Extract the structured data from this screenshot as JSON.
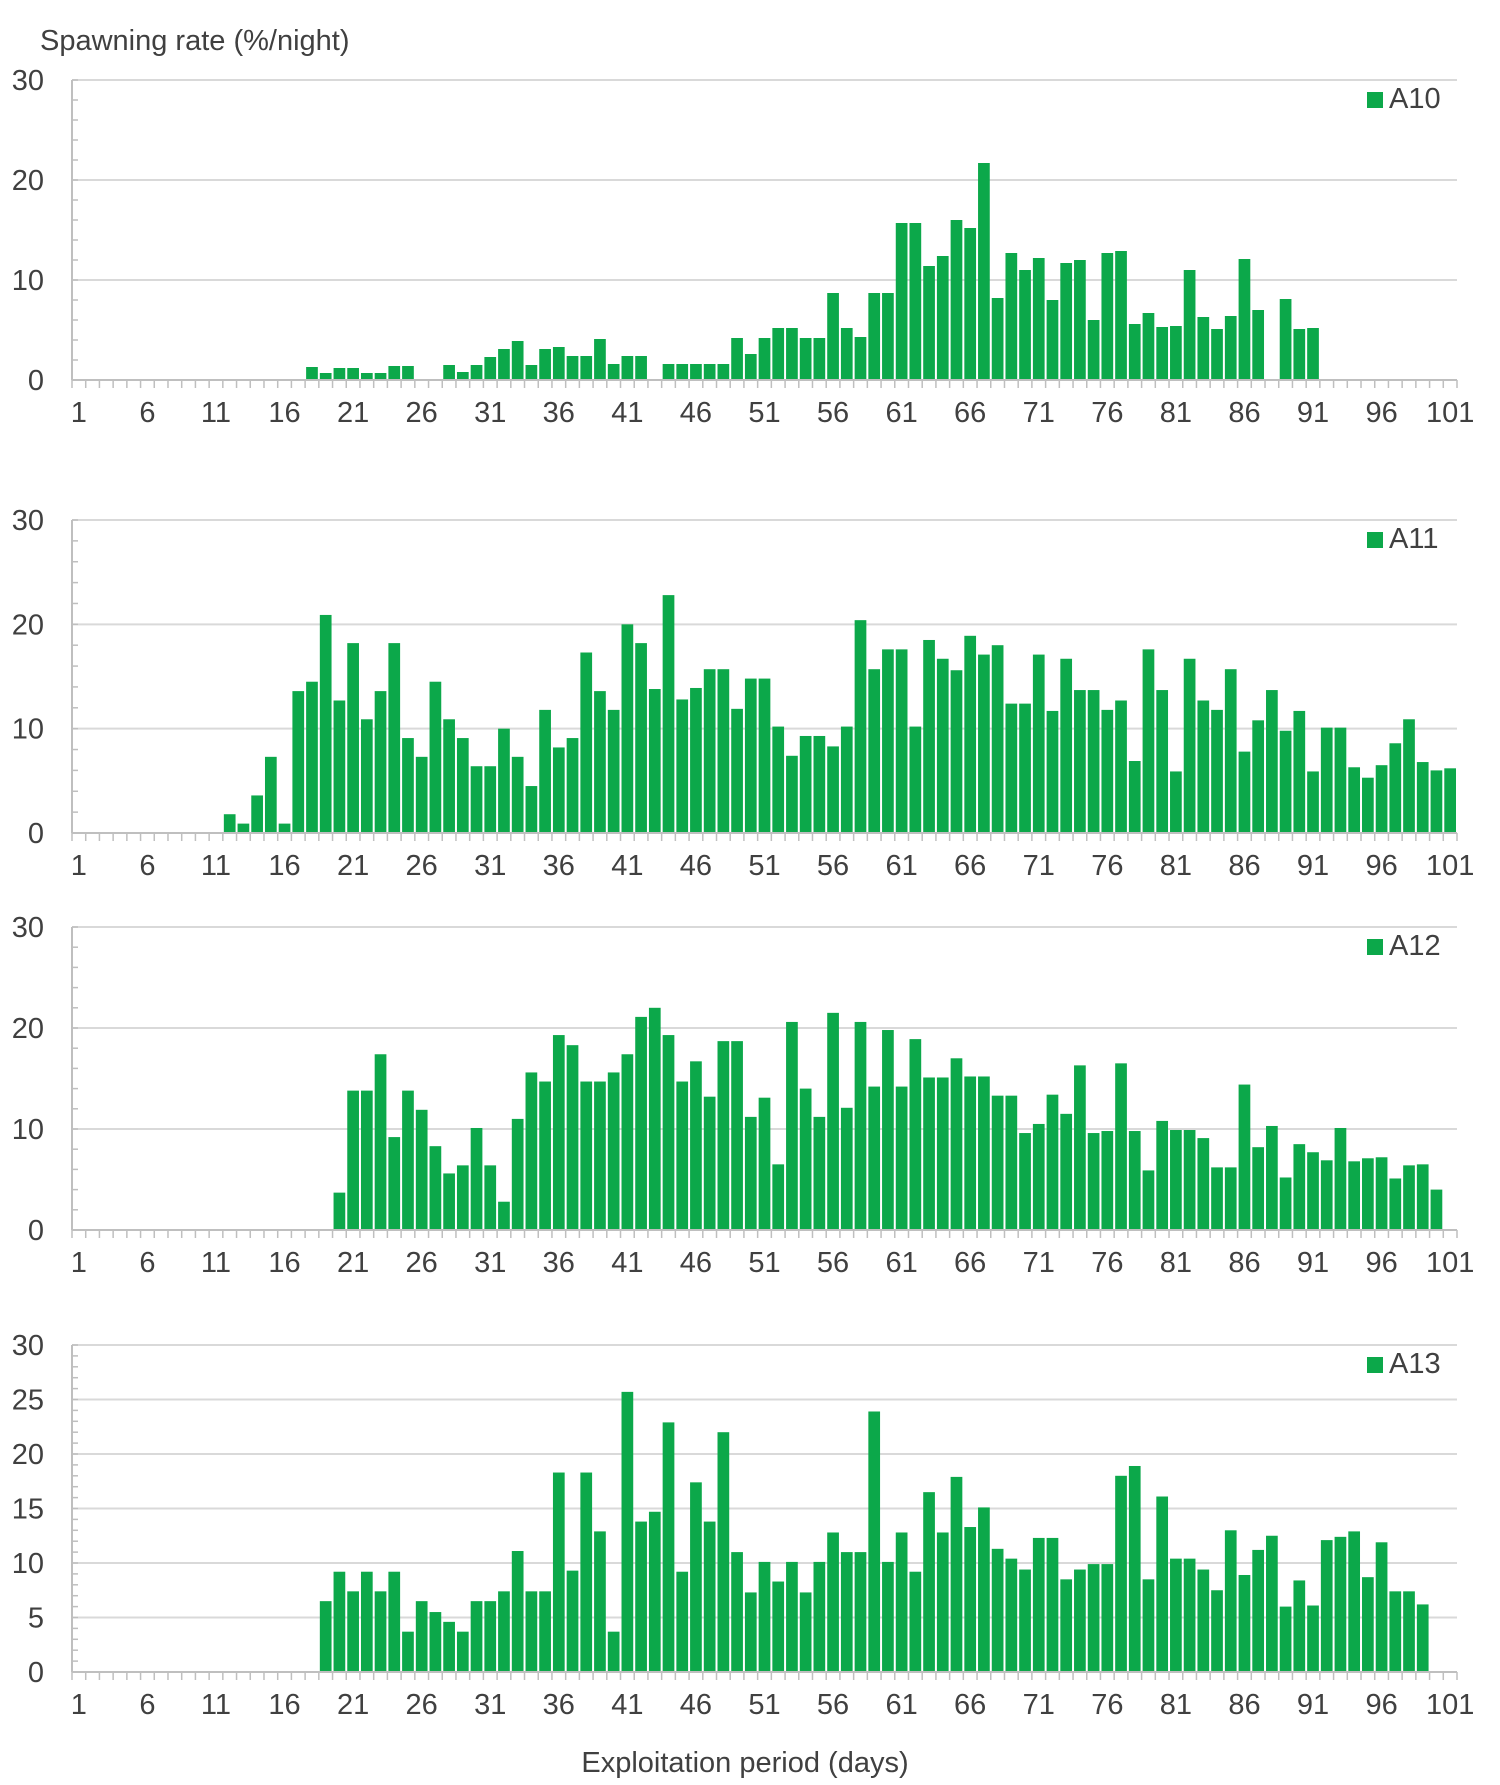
{
  "figure": {
    "ylabel": "Spawning rate (%/night)",
    "xlabel": "Exploitation period (days)",
    "bar_color": "#0ca84a",
    "grid_color": "#d9d9d9",
    "axis_color": "#bfbfbf"
  },
  "chart_data": [
    {
      "type": "bar",
      "title": "A10",
      "legend": "A10",
      "ylim": [
        0,
        30
      ],
      "yticks": [
        0,
        10,
        20,
        30
      ],
      "xtick_labels": [
        "1",
        "6",
        "11",
        "16",
        "21",
        "26",
        "31",
        "36",
        "41",
        "46",
        "51",
        "56",
        "61",
        "66",
        "71",
        "76",
        "81",
        "86",
        "91",
        "96",
        "101"
      ],
      "days": [
        1,
        2,
        3,
        4,
        5,
        6,
        7,
        8,
        9,
        10,
        11,
        12,
        13,
        14,
        15,
        16,
        17,
        18,
        19,
        20,
        21,
        22,
        23,
        24,
        25,
        26,
        27,
        28,
        29,
        30,
        31,
        32,
        33,
        34,
        35,
        36,
        37,
        38,
        39,
        40,
        41,
        42,
        43,
        44,
        45,
        46,
        47,
        48,
        49,
        50,
        51,
        52,
        53,
        54,
        55,
        56,
        57,
        58,
        59,
        60,
        61,
        62,
        63,
        64,
        65,
        66,
        67,
        68,
        69,
        70,
        71,
        72,
        73,
        74,
        75,
        76,
        77,
        78,
        79,
        80,
        81,
        82,
        83,
        84,
        85,
        86,
        87,
        88,
        89,
        90,
        91,
        92,
        93,
        94,
        95,
        96,
        97,
        98,
        99,
        100,
        101
      ],
      "values": [
        0,
        0,
        0,
        0,
        0,
        0,
        0,
        0,
        0,
        0,
        0,
        0,
        0,
        0,
        0,
        0,
        0,
        1.3,
        0.7,
        1.2,
        1.2,
        0.7,
        0.7,
        1.4,
        1.4,
        0,
        0,
        1.5,
        0.8,
        1.5,
        2.3,
        3.1,
        3.9,
        1.5,
        3.1,
        3.3,
        2.4,
        2.4,
        4.1,
        1.6,
        2.4,
        2.4,
        0,
        1.6,
        1.6,
        1.6,
        1.6,
        1.6,
        4.2,
        2.6,
        4.2,
        5.2,
        5.2,
        4.2,
        4.2,
        8.7,
        5.2,
        4.3,
        8.7,
        8.7,
        15.7,
        15.7,
        11.4,
        12.4,
        16,
        15.2,
        21.7,
        8.2,
        12.7,
        11,
        12.2,
        8,
        11.7,
        12,
        6,
        12.7,
        12.9,
        5.6,
        6.7,
        5.3,
        5.4,
        11,
        6.3,
        5.1,
        6.4,
        12.1,
        7,
        0,
        8.1,
        5.1,
        5.2,
        0,
        0,
        0,
        0,
        0,
        0,
        0,
        0,
        0,
        0
      ]
    },
    {
      "type": "bar",
      "title": "A11",
      "legend": "A11",
      "ylim": [
        0,
        30
      ],
      "yticks": [
        0,
        10,
        20,
        30
      ],
      "xtick_labels": [
        "1",
        "6",
        "11",
        "16",
        "21",
        "26",
        "31",
        "36",
        "41",
        "46",
        "51",
        "56",
        "61",
        "66",
        "71",
        "76",
        "81",
        "86",
        "91",
        "96",
        "101"
      ],
      "days": [
        1,
        2,
        3,
        4,
        5,
        6,
        7,
        8,
        9,
        10,
        11,
        12,
        13,
        14,
        15,
        16,
        17,
        18,
        19,
        20,
        21,
        22,
        23,
        24,
        25,
        26,
        27,
        28,
        29,
        30,
        31,
        32,
        33,
        34,
        35,
        36,
        37,
        38,
        39,
        40,
        41,
        42,
        43,
        44,
        45,
        46,
        47,
        48,
        49,
        50,
        51,
        52,
        53,
        54,
        55,
        56,
        57,
        58,
        59,
        60,
        61,
        62,
        63,
        64,
        65,
        66,
        67,
        68,
        69,
        70,
        71,
        72,
        73,
        74,
        75,
        76,
        77,
        78,
        79,
        80,
        81,
        82,
        83,
        84,
        85,
        86,
        87,
        88,
        89,
        90,
        91,
        92,
        93,
        94,
        95,
        96,
        97,
        98,
        99,
        100,
        101
      ],
      "values": [
        0,
        0,
        0,
        0,
        0,
        0,
        0,
        0,
        0,
        0,
        0,
        1.8,
        0.9,
        3.6,
        7.3,
        0.9,
        13.6,
        14.5,
        20.9,
        12.7,
        18.2,
        10.9,
        13.6,
        18.2,
        9.1,
        7.3,
        14.5,
        10.9,
        9.1,
        6.4,
        6.4,
        10,
        7.3,
        4.5,
        11.8,
        8.2,
        9.1,
        17.3,
        13.6,
        11.8,
        20,
        18.2,
        13.8,
        22.8,
        12.8,
        13.9,
        15.7,
        15.7,
        11.9,
        14.8,
        14.8,
        10.2,
        7.4,
        9.3,
        9.3,
        8.3,
        10.2,
        20.4,
        15.7,
        17.6,
        17.6,
        10.2,
        18.5,
        16.7,
        15.6,
        18.9,
        17.1,
        18,
        12.4,
        12.4,
        17.1,
        11.7,
        16.7,
        13.7,
        13.7,
        11.8,
        12.7,
        6.9,
        17.6,
        13.7,
        5.9,
        16.7,
        12.7,
        11.8,
        15.7,
        7.8,
        10.8,
        13.7,
        9.8,
        11.7,
        5.9,
        10.1,
        10.1,
        6.3,
        5.3,
        6.5,
        8.6,
        10.9,
        6.8,
        6,
        6.2
      ]
    },
    {
      "type": "bar",
      "title": "A12",
      "legend": "A12",
      "ylim": [
        0,
        30
      ],
      "yticks": [
        0,
        10,
        20,
        30
      ],
      "xtick_labels": [
        "1",
        "6",
        "11",
        "16",
        "21",
        "26",
        "31",
        "36",
        "41",
        "46",
        "51",
        "56",
        "61",
        "66",
        "71",
        "76",
        "81",
        "86",
        "91",
        "96",
        "101"
      ],
      "days": [
        1,
        2,
        3,
        4,
        5,
        6,
        7,
        8,
        9,
        10,
        11,
        12,
        13,
        14,
        15,
        16,
        17,
        18,
        19,
        20,
        21,
        22,
        23,
        24,
        25,
        26,
        27,
        28,
        29,
        30,
        31,
        32,
        33,
        34,
        35,
        36,
        37,
        38,
        39,
        40,
        41,
        42,
        43,
        44,
        45,
        46,
        47,
        48,
        49,
        50,
        51,
        52,
        53,
        54,
        55,
        56,
        57,
        58,
        59,
        60,
        61,
        62,
        63,
        64,
        65,
        66,
        67,
        68,
        69,
        70,
        71,
        72,
        73,
        74,
        75,
        76,
        77,
        78,
        79,
        80,
        81,
        82,
        83,
        84,
        85,
        86,
        87,
        88,
        89,
        90,
        91,
        92,
        93,
        94,
        95,
        96,
        97,
        98,
        99,
        100,
        101
      ],
      "values": [
        0,
        0,
        0,
        0,
        0,
        0,
        0,
        0,
        0,
        0,
        0,
        0,
        0,
        0,
        0,
        0,
        0,
        0,
        0,
        3.7,
        13.8,
        13.8,
        17.4,
        9.2,
        13.8,
        11.9,
        8.3,
        5.6,
        6.4,
        10.1,
        6.4,
        2.8,
        11,
        15.6,
        14.7,
        19.3,
        18.3,
        14.7,
        14.7,
        15.6,
        17.4,
        21.1,
        22,
        19.3,
        14.7,
        16.7,
        13.2,
        18.7,
        18.7,
        11.2,
        13.1,
        6.5,
        20.6,
        14,
        11.2,
        21.5,
        12.1,
        20.6,
        14.2,
        19.8,
        14.2,
        18.9,
        15.1,
        15.1,
        17,
        15.2,
        15.2,
        13.3,
        13.3,
        9.6,
        10.5,
        13.4,
        11.5,
        16.3,
        9.6,
        9.8,
        16.5,
        9.8,
        5.9,
        10.8,
        9.9,
        9.9,
        9.1,
        6.2,
        6.2,
        14.4,
        8.2,
        10.3,
        5.2,
        8.5,
        7.7,
        6.9,
        10.1,
        6.8,
        7.1,
        7.2,
        5.1,
        6.4,
        6.5,
        4,
        0
      ]
    },
    {
      "type": "bar",
      "title": "A13",
      "legend": "A13",
      "ylim": [
        0,
        30
      ],
      "yticks": [
        0,
        5,
        10,
        15,
        20,
        25,
        30
      ],
      "xtick_labels": [
        "1",
        "6",
        "11",
        "16",
        "21",
        "26",
        "31",
        "36",
        "41",
        "46",
        "51",
        "56",
        "61",
        "66",
        "71",
        "76",
        "81",
        "86",
        "91",
        "96",
        "101"
      ],
      "days": [
        1,
        2,
        3,
        4,
        5,
        6,
        7,
        8,
        9,
        10,
        11,
        12,
        13,
        14,
        15,
        16,
        17,
        18,
        19,
        20,
        21,
        22,
        23,
        24,
        25,
        26,
        27,
        28,
        29,
        30,
        31,
        32,
        33,
        34,
        35,
        36,
        37,
        38,
        39,
        40,
        41,
        42,
        43,
        44,
        45,
        46,
        47,
        48,
        49,
        50,
        51,
        52,
        53,
        54,
        55,
        56,
        57,
        58,
        59,
        60,
        61,
        62,
        63,
        64,
        65,
        66,
        67,
        68,
        69,
        70,
        71,
        72,
        73,
        74,
        75,
        76,
        77,
        78,
        79,
        80,
        81,
        82,
        83,
        84,
        85,
        86,
        87,
        88,
        89,
        90,
        91,
        92,
        93,
        94,
        95,
        96,
        97,
        98,
        99,
        100,
        101
      ],
      "values": [
        0,
        0,
        0,
        0,
        0,
        0,
        0,
        0,
        0,
        0,
        0,
        0,
        0,
        0,
        0,
        0,
        0,
        0,
        6.5,
        9.2,
        7.4,
        9.2,
        7.4,
        9.2,
        3.7,
        6.5,
        5.5,
        4.6,
        3.7,
        6.5,
        6.5,
        7.4,
        11.1,
        7.4,
        7.4,
        18.3,
        9.3,
        18.3,
        12.9,
        3.7,
        25.7,
        13.8,
        14.7,
        22.9,
        9.2,
        17.4,
        13.8,
        22,
        11,
        7.3,
        10.1,
        8.3,
        10.1,
        7.3,
        10.1,
        12.8,
        11,
        11,
        23.9,
        10.1,
        12.8,
        9.2,
        16.5,
        12.8,
        17.9,
        13.3,
        15.1,
        11.3,
        10.4,
        9.4,
        12.3,
        12.3,
        8.5,
        9.4,
        9.9,
        9.9,
        18,
        18.9,
        8.5,
        16.1,
        10.4,
        10.4,
        9.4,
        7.5,
        13,
        8.9,
        11.2,
        12.5,
        6,
        8.4,
        6.1,
        12.1,
        12.4,
        12.9,
        8.7,
        11.9,
        7.4,
        7.4,
        6.2,
        0,
        0
      ]
    }
  ]
}
